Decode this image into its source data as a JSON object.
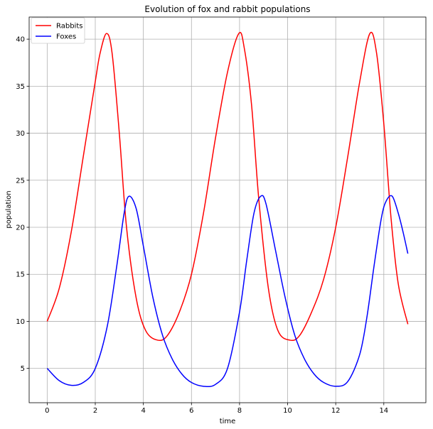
{
  "chart_data": {
    "type": "line",
    "title": "Evolution of fox and rabbit populations",
    "xlabel": "time",
    "ylabel": "population",
    "xlim": [
      -0.75,
      15.75
    ],
    "ylim": [
      1.35,
      42.35
    ],
    "xticks": [
      0,
      2,
      4,
      6,
      8,
      10,
      12,
      14
    ],
    "yticks": [
      5,
      10,
      15,
      20,
      25,
      30,
      35,
      40
    ],
    "grid": true,
    "legend_position": "top-left",
    "series": [
      {
        "name": "Rabbits",
        "color": "#ff0000",
        "x": [
          0,
          0.5,
          1,
          1.5,
          2,
          2.2,
          2.47,
          2.7,
          3,
          3.3,
          3.7,
          4.1,
          4.6,
          5,
          5.5,
          6,
          6.5,
          7,
          7.5,
          7.97,
          8.2,
          8.5,
          8.8,
          9.2,
          9.6,
          10.1,
          10.5,
          11,
          11.5,
          12,
          12.5,
          13,
          13.42,
          13.7,
          14,
          14.3,
          14.6,
          15
        ],
        "y": [
          10,
          13.5,
          19.5,
          27.5,
          35.5,
          38.5,
          40.6,
          38.5,
          30,
          20,
          12.5,
          9,
          8,
          8.5,
          11,
          15,
          21.5,
          29.5,
          36.5,
          40.6,
          39,
          33,
          23,
          13.5,
          9,
          8,
          8.5,
          11,
          14.5,
          20,
          27.5,
          35.5,
          40.6,
          38.5,
          31,
          21,
          14,
          9.7
        ]
      },
      {
        "name": "Foxes",
        "color": "#0000ff",
        "x": [
          0,
          0.5,
          1,
          1.5,
          2,
          2.5,
          2.9,
          3.2,
          3.4,
          3.7,
          4,
          4.4,
          4.8,
          5.2,
          5.6,
          6,
          6.5,
          7,
          7.5,
          8,
          8.3,
          8.6,
          8.88,
          9.1,
          9.5,
          9.9,
          10.3,
          10.7,
          11.1,
          11.5,
          12,
          12.5,
          13,
          13.3,
          13.6,
          13.9,
          14.1,
          14.35,
          14.6,
          14.8,
          15
        ],
        "y": [
          5,
          3.7,
          3.2,
          3.5,
          5,
          9.5,
          16,
          21.5,
          23.3,
          22,
          18,
          12.5,
          8.5,
          6,
          4.4,
          3.5,
          3.1,
          3.3,
          5,
          11,
          16.5,
          21.5,
          23.3,
          22.5,
          17.5,
          12.5,
          8.5,
          6,
          4.4,
          3.5,
          3.1,
          3.6,
          6.5,
          10.5,
          16,
          21,
          22.8,
          23.3,
          21.5,
          19.5,
          17.2
        ]
      }
    ]
  }
}
